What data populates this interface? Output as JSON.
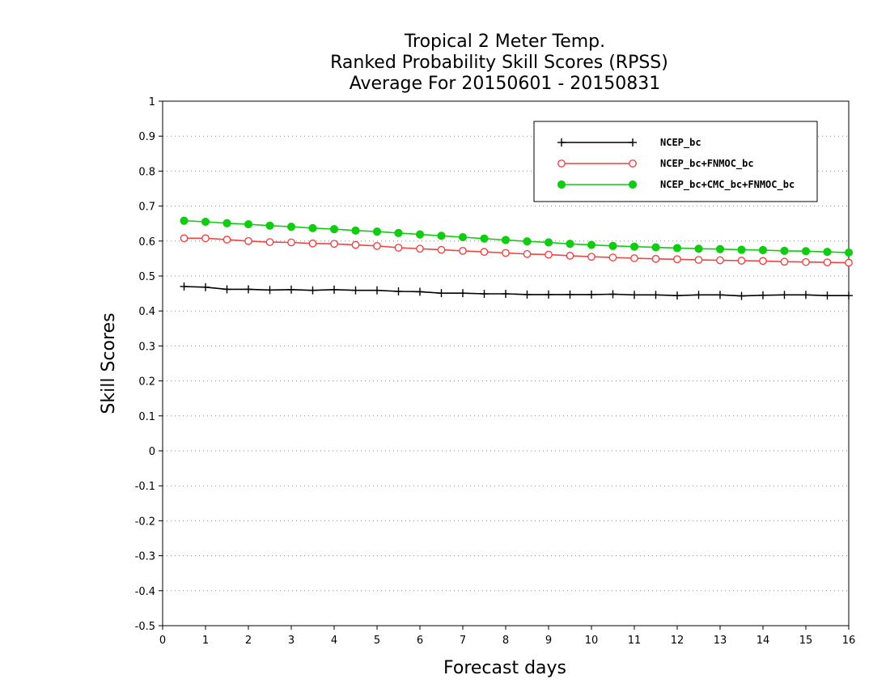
{
  "chart_data": {
    "type": "line",
    "title": [
      "Tropical 2 Meter Temp.",
      "Ranked Probability Skill Scores (RPSS)",
      "Average For 20150601 - 20150831"
    ],
    "xlabel": "Forecast days",
    "ylabel": "Skill Scores",
    "xlim": [
      0,
      16
    ],
    "ylim": [
      -0.5,
      1
    ],
    "xticks": [
      "0",
      "1",
      "2",
      "3",
      "4",
      "5",
      "6",
      "7",
      "8",
      "9",
      "10",
      "11",
      "12",
      "13",
      "14",
      "15",
      "16"
    ],
    "yticks": [
      "-0.5",
      "-0.4",
      "-0.3",
      "-0.2",
      "-0.1",
      "0",
      "0.1",
      "0.2",
      "0.3",
      "0.4",
      "0.5",
      "0.6",
      "0.7",
      "0.8",
      "0.9",
      "1"
    ],
    "grid": "horizontal-dotted",
    "legend_position": "top-right",
    "x": [
      0.5,
      1,
      1.5,
      2,
      2.5,
      3,
      3.5,
      4,
      4.5,
      5,
      5.5,
      6,
      6.5,
      7,
      7.5,
      8,
      8.5,
      9,
      9.5,
      10,
      10.5,
      11,
      11.5,
      12,
      12.5,
      13,
      13.5,
      14,
      14.5,
      15,
      15.5,
      16
    ],
    "series": [
      {
        "name": "NCEP_bc",
        "color": "#000000",
        "marker": "plus",
        "values": [
          0.47,
          0.468,
          0.462,
          0.462,
          0.46,
          0.461,
          0.459,
          0.461,
          0.459,
          0.459,
          0.456,
          0.455,
          0.451,
          0.451,
          0.449,
          0.449,
          0.447,
          0.447,
          0.447,
          0.447,
          0.448,
          0.446,
          0.446,
          0.444,
          0.446,
          0.446,
          0.443,
          0.445,
          0.446,
          0.446,
          0.444,
          0.444
        ]
      },
      {
        "name": "NCEP_bc+FNMOC_bc",
        "color": "#ee4444",
        "marker": "open-circle",
        "values": [
          0.608,
          0.608,
          0.604,
          0.6,
          0.597,
          0.596,
          0.593,
          0.592,
          0.589,
          0.586,
          0.581,
          0.578,
          0.575,
          0.572,
          0.569,
          0.566,
          0.563,
          0.561,
          0.558,
          0.555,
          0.553,
          0.551,
          0.549,
          0.548,
          0.546,
          0.545,
          0.544,
          0.543,
          0.541,
          0.54,
          0.539,
          0.538
        ]
      },
      {
        "name": "NCEP_bc+CMC_bc+FNMOC_bc",
        "color": "#11cc11",
        "marker": "filled-circle",
        "values": [
          0.658,
          0.655,
          0.651,
          0.648,
          0.644,
          0.641,
          0.637,
          0.634,
          0.63,
          0.627,
          0.623,
          0.619,
          0.615,
          0.611,
          0.607,
          0.603,
          0.599,
          0.596,
          0.592,
          0.589,
          0.586,
          0.584,
          0.582,
          0.58,
          0.578,
          0.577,
          0.575,
          0.574,
          0.572,
          0.571,
          0.569,
          0.567
        ]
      }
    ]
  }
}
